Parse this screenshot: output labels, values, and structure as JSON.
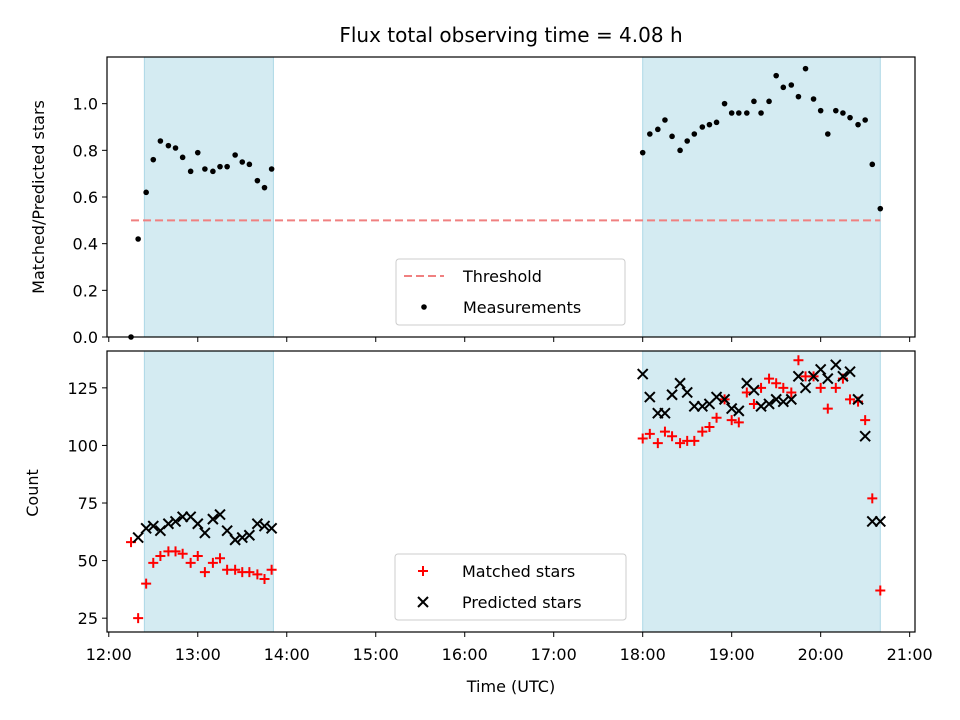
{
  "chart_data": {
    "title": "Flux total observing time = 4.08 h",
    "xlabel": "Time (UTC)",
    "x_ticks": [
      "12:00",
      "13:00",
      "14:00",
      "15:00",
      "16:00",
      "17:00",
      "18:00",
      "19:00",
      "20:00",
      "21:00"
    ],
    "x_range": [
      11.98,
      21.06
    ],
    "shaded_intervals": [
      [
        12.4,
        13.85
      ],
      [
        18.0,
        20.67
      ]
    ],
    "shade_color": "#d4ebf2",
    "panels": [
      {
        "type": "scatter",
        "ylabel": "Matched/Predicted stars",
        "ylim": [
          0.0,
          1.2
        ],
        "y_ticks": [
          "0.0",
          "0.2",
          "0.4",
          "0.6",
          "0.8",
          "1.0"
        ],
        "threshold": {
          "name": "Threshold",
          "value": 0.5,
          "x_range": [
            12.25,
            20.67
          ],
          "color": "#f08080"
        },
        "series": [
          {
            "name": "Measurements",
            "color": "#000000",
            "marker": "dot",
            "x": [
              12.25,
              12.33,
              12.42,
              12.5,
              12.58,
              12.67,
              12.75,
              12.83,
              12.92,
              13.0,
              13.08,
              13.17,
              13.25,
              13.33,
              13.42,
              13.5,
              13.58,
              13.67,
              13.75,
              13.83,
              18.0,
              18.08,
              18.17,
              18.25,
              18.33,
              18.42,
              18.5,
              18.58,
              18.67,
              18.75,
              18.83,
              18.92,
              19.0,
              19.08,
              19.17,
              19.25,
              19.33,
              19.42,
              19.5,
              19.58,
              19.67,
              19.75,
              19.83,
              19.92,
              20.0,
              20.08,
              20.17,
              20.25,
              20.33,
              20.42,
              20.5,
              20.58,
              20.67
            ],
            "y": [
              0.0,
              0.42,
              0.62,
              0.76,
              0.84,
              0.82,
              0.81,
              0.77,
              0.71,
              0.79,
              0.72,
              0.71,
              0.73,
              0.73,
              0.78,
              0.75,
              0.74,
              0.67,
              0.64,
              0.72,
              0.79,
              0.87,
              0.89,
              0.93,
              0.86,
              0.8,
              0.84,
              0.87,
              0.9,
              0.91,
              0.92,
              1.0,
              0.96,
              0.96,
              0.96,
              1.01,
              0.96,
              1.01,
              1.12,
              1.07,
              1.08,
              1.03,
              1.15,
              1.02,
              0.97,
              0.87,
              0.97,
              0.96,
              0.94,
              0.91,
              0.93,
              0.74,
              0.55
            ]
          }
        ],
        "legend": {
          "placement": "lower-center",
          "entries": [
            "Threshold",
            "Measurements"
          ]
        }
      },
      {
        "type": "scatter",
        "ylabel": "Count",
        "ylim": [
          19,
          141
        ],
        "y_ticks": [
          "25",
          "50",
          "75",
          "100",
          "125"
        ],
        "series": [
          {
            "name": "Matched stars",
            "color": "#ff0000",
            "marker": "plus",
            "x": [
              12.25,
              12.33,
              12.42,
              12.5,
              12.58,
              12.67,
              12.75,
              12.83,
              12.92,
              13.0,
              13.08,
              13.17,
              13.25,
              13.33,
              13.42,
              13.5,
              13.58,
              13.67,
              13.75,
              13.83,
              18.0,
              18.08,
              18.17,
              18.25,
              18.33,
              18.42,
              18.5,
              18.58,
              18.67,
              18.75,
              18.83,
              18.92,
              19.0,
              19.08,
              19.17,
              19.25,
              19.33,
              19.42,
              19.5,
              19.58,
              19.67,
              19.75,
              19.83,
              19.92,
              20.0,
              20.08,
              20.17,
              20.25,
              20.33,
              20.42,
              20.5,
              20.58,
              20.67
            ],
            "y": [
              58,
              25,
              40,
              49,
              52,
              54,
              54,
              53,
              49,
              52,
              45,
              49,
              51,
              46,
              46,
              45,
              45,
              44,
              42,
              46,
              103,
              105,
              101,
              106,
              104,
              101,
              102,
              102,
              106,
              108,
              112,
              120,
              111,
              110,
              123,
              118,
              125,
              129,
              127,
              125,
              123,
              137,
              130,
              130,
              125,
              116,
              125,
              129,
              120,
              119,
              111,
              77,
              37
            ]
          },
          {
            "name": "Predicted stars",
            "color": "#000000",
            "marker": "x",
            "x": [
              12.33,
              12.42,
              12.5,
              12.58,
              12.67,
              12.75,
              12.83,
              12.92,
              13.0,
              13.08,
              13.17,
              13.25,
              13.33,
              13.42,
              13.5,
              13.58,
              13.67,
              13.75,
              13.83,
              18.0,
              18.08,
              18.17,
              18.25,
              18.33,
              18.42,
              18.5,
              18.58,
              18.67,
              18.75,
              18.83,
              18.92,
              19.0,
              19.08,
              19.17,
              19.25,
              19.33,
              19.42,
              19.5,
              19.58,
              19.67,
              19.75,
              19.83,
              19.92,
              20.0,
              20.08,
              20.17,
              20.25,
              20.33,
              20.42,
              20.5,
              20.58,
              20.67
            ],
            "y": [
              60,
              64,
              65,
              63,
              66,
              67,
              69,
              69,
              66,
              62,
              68,
              70,
              63,
              59,
              60,
              61,
              66,
              65,
              64,
              131,
              121,
              114,
              114,
              122,
              127,
              123,
              117,
              117,
              118,
              121,
              120,
              116,
              115,
              127,
              124,
              117,
              118,
              120,
              119,
              120,
              130,
              125,
              130,
              133,
              129,
              135,
              130,
              132,
              120,
              104,
              67,
              67
            ]
          }
        ],
        "legend": {
          "placement": "lower-center",
          "entries": [
            "Matched stars",
            "Predicted stars"
          ]
        }
      }
    ]
  }
}
